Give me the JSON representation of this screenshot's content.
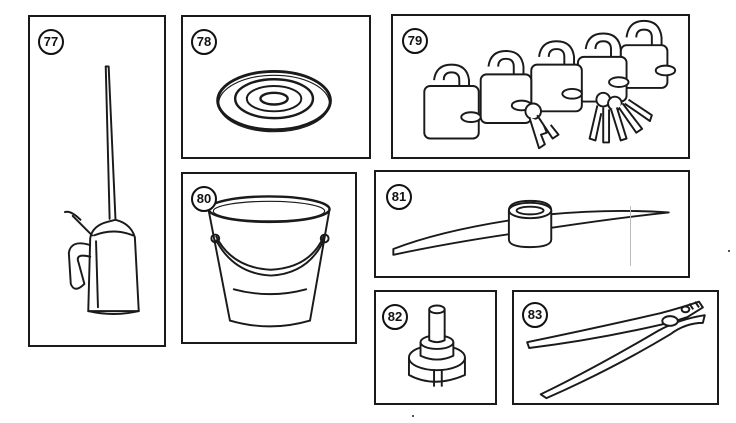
{
  "items": [
    {
      "number": "77",
      "icon": "oil-can-icon"
    },
    {
      "number": "78",
      "icon": "gasket-rings-icon"
    },
    {
      "number": "79",
      "icon": "padlocks-with-keys-icon"
    },
    {
      "number": "80",
      "icon": "bucket-icon"
    },
    {
      "number": "81",
      "icon": "pickaxe-head-icon"
    },
    {
      "number": "82",
      "icon": "stepped-shaft-adapter-icon"
    },
    {
      "number": "83",
      "icon": "slip-joint-pliers-icon"
    }
  ],
  "colors": {
    "ink": "#1a1a1a",
    "paper": "#ffffff"
  }
}
